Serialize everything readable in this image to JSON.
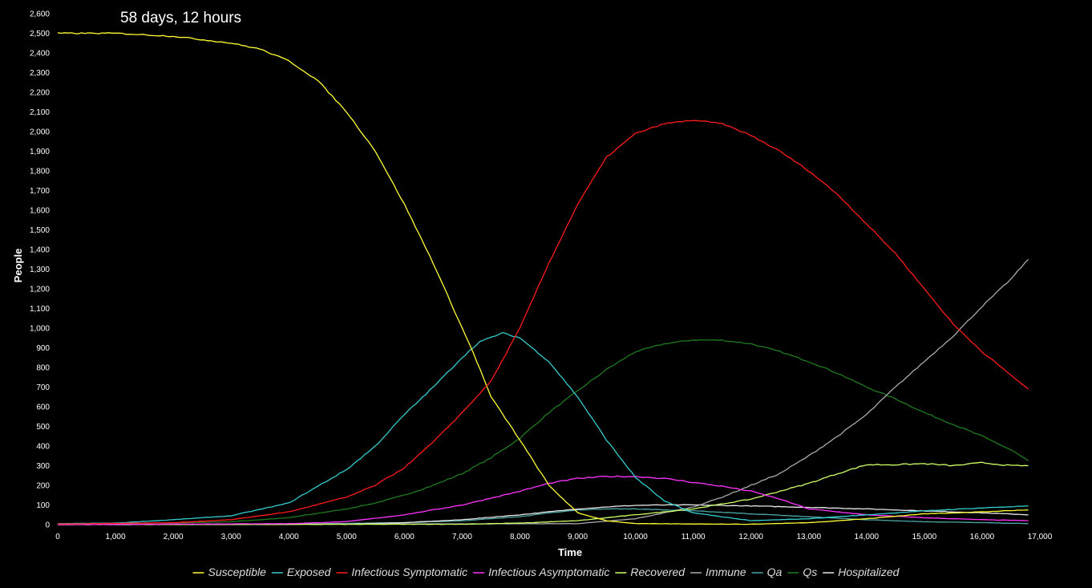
{
  "status": {
    "elapsed": "58 days, 12 hours"
  },
  "chart_data": {
    "type": "line",
    "xlabel": "Time",
    "ylabel": "People",
    "xlim": [
      0,
      17000
    ],
    "ylim": [
      0,
      2600
    ],
    "x_ticks": [
      0,
      1000,
      2000,
      3000,
      4000,
      5000,
      6000,
      7000,
      8000,
      9000,
      10000,
      11000,
      12000,
      13000,
      14000,
      15000,
      16000,
      17000
    ],
    "x_tick_labels": [
      "0",
      "1,000",
      "2,000",
      "3,000",
      "4,000",
      "5,000",
      "6,000",
      "7,000",
      "8,000",
      "9,000",
      "10,000",
      "11,000",
      "12,000",
      "13,000",
      "14,000",
      "15,000",
      "16,000",
      "17,000"
    ],
    "y_ticks": [
      0,
      100,
      200,
      300,
      400,
      500,
      600,
      700,
      800,
      900,
      1000,
      1100,
      1200,
      1300,
      1400,
      1500,
      1600,
      1700,
      1800,
      1900,
      2000,
      2100,
      2200,
      2300,
      2400,
      2500,
      2600
    ],
    "y_tick_labels": [
      "0",
      "100",
      "200",
      "300",
      "400",
      "500",
      "600",
      "700",
      "800",
      "900",
      "1,000",
      "1,100",
      "1,200",
      "1,300",
      "1,400",
      "1,500",
      "1,600",
      "1,700",
      "1,800",
      "1,900",
      "2,000",
      "2,100",
      "2,200",
      "2,300",
      "2,400",
      "2,500",
      "2,600"
    ],
    "grid": false,
    "legend_position": "bottom",
    "series": [
      {
        "name": "Susceptible",
        "color": "#ffff33",
        "points": [
          [
            0,
            2500
          ],
          [
            1000,
            2500
          ],
          [
            2000,
            2485
          ],
          [
            3000,
            2450
          ],
          [
            3500,
            2420
          ],
          [
            4000,
            2360
          ],
          [
            4500,
            2260
          ],
          [
            5000,
            2100
          ],
          [
            5500,
            1900
          ],
          [
            6000,
            1630
          ],
          [
            6500,
            1330
          ],
          [
            7000,
            1000
          ],
          [
            7200,
            870
          ],
          [
            7500,
            650
          ],
          [
            8000,
            430
          ],
          [
            8500,
            200
          ],
          [
            9000,
            60
          ],
          [
            9500,
            20
          ],
          [
            10000,
            5
          ],
          [
            12000,
            2
          ],
          [
            13000,
            10
          ],
          [
            14000,
            30
          ],
          [
            15000,
            55
          ],
          [
            16000,
            65
          ],
          [
            16800,
            75
          ]
        ]
      },
      {
        "name": "Exposed",
        "color": "#33cccc",
        "points": [
          [
            0,
            5
          ],
          [
            1000,
            8
          ],
          [
            2000,
            25
          ],
          [
            3000,
            45
          ],
          [
            4000,
            110
          ],
          [
            5000,
            280
          ],
          [
            5500,
            400
          ],
          [
            6000,
            560
          ],
          [
            6500,
            700
          ],
          [
            7000,
            850
          ],
          [
            7300,
            930
          ],
          [
            7700,
            975
          ],
          [
            8000,
            950
          ],
          [
            8500,
            830
          ],
          [
            9000,
            650
          ],
          [
            9500,
            430
          ],
          [
            10000,
            240
          ],
          [
            10500,
            120
          ],
          [
            11000,
            60
          ],
          [
            12000,
            20
          ],
          [
            13000,
            30
          ],
          [
            14000,
            50
          ],
          [
            15000,
            70
          ],
          [
            16000,
            85
          ],
          [
            16800,
            95
          ]
        ]
      },
      {
        "name": "Infectious Symptomatic",
        "color": "#ff1a1a",
        "points": [
          [
            0,
            3
          ],
          [
            2000,
            10
          ],
          [
            3000,
            25
          ],
          [
            4000,
            65
          ],
          [
            5000,
            140
          ],
          [
            5500,
            200
          ],
          [
            6000,
            290
          ],
          [
            6500,
            420
          ],
          [
            7000,
            570
          ],
          [
            7500,
            730
          ],
          [
            8000,
            1000
          ],
          [
            8500,
            1330
          ],
          [
            9000,
            1630
          ],
          [
            9500,
            1870
          ],
          [
            10000,
            1990
          ],
          [
            10500,
            2040
          ],
          [
            11000,
            2058
          ],
          [
            11500,
            2040
          ],
          [
            12000,
            1980
          ],
          [
            12500,
            1900
          ],
          [
            13000,
            1800
          ],
          [
            13500,
            1680
          ],
          [
            14000,
            1530
          ],
          [
            14500,
            1380
          ],
          [
            15000,
            1200
          ],
          [
            15500,
            1020
          ],
          [
            16000,
            880
          ],
          [
            16500,
            760
          ],
          [
            16800,
            690
          ]
        ]
      },
      {
        "name": "Infectious Asymptomatic",
        "color": "#ff33ff",
        "points": [
          [
            0,
            0
          ],
          [
            4000,
            5
          ],
          [
            5000,
            15
          ],
          [
            6000,
            50
          ],
          [
            7000,
            100
          ],
          [
            8000,
            170
          ],
          [
            8500,
            210
          ],
          [
            9000,
            235
          ],
          [
            9500,
            245
          ],
          [
            10000,
            245
          ],
          [
            10500,
            235
          ],
          [
            11000,
            215
          ],
          [
            11500,
            195
          ],
          [
            12000,
            170
          ],
          [
            12500,
            130
          ],
          [
            13000,
            80
          ],
          [
            14000,
            50
          ],
          [
            15000,
            35
          ],
          [
            16000,
            25
          ],
          [
            16800,
            20
          ]
        ]
      },
      {
        "name": "Recovered",
        "color": "#ccff66",
        "points": [
          [
            0,
            0
          ],
          [
            7000,
            2
          ],
          [
            8000,
            8
          ],
          [
            9000,
            20
          ],
          [
            10000,
            50
          ],
          [
            11000,
            80
          ],
          [
            12000,
            130
          ],
          [
            12500,
            170
          ],
          [
            13000,
            210
          ],
          [
            13500,
            260
          ],
          [
            14000,
            305
          ],
          [
            14500,
            305
          ],
          [
            15000,
            310
          ],
          [
            15500,
            300
          ],
          [
            16000,
            315
          ],
          [
            16500,
            300
          ],
          [
            16800,
            300
          ]
        ]
      },
      {
        "name": "Immune",
        "color": "#aaaaaa",
        "points": [
          [
            0,
            0
          ],
          [
            9000,
            5
          ],
          [
            10000,
            30
          ],
          [
            11000,
            90
          ],
          [
            11500,
            140
          ],
          [
            12000,
            200
          ],
          [
            12500,
            260
          ],
          [
            13000,
            350
          ],
          [
            13500,
            450
          ],
          [
            14000,
            560
          ],
          [
            14500,
            700
          ],
          [
            15000,
            830
          ],
          [
            15500,
            960
          ],
          [
            16000,
            1110
          ],
          [
            16500,
            1250
          ],
          [
            16800,
            1350
          ]
        ]
      },
      {
        "name": "Qa",
        "color": "#4da6a6",
        "points": [
          [
            0,
            0
          ],
          [
            4000,
            2
          ],
          [
            6000,
            10
          ],
          [
            7000,
            20
          ],
          [
            8000,
            40
          ],
          [
            8500,
            60
          ],
          [
            9000,
            75
          ],
          [
            9500,
            80
          ],
          [
            10000,
            80
          ],
          [
            11000,
            70
          ],
          [
            12000,
            55
          ],
          [
            13000,
            40
          ],
          [
            14000,
            25
          ],
          [
            15000,
            15
          ],
          [
            16000,
            10
          ],
          [
            16800,
            5
          ]
        ]
      },
      {
        "name": "Qs",
        "color": "#1f7a1f",
        "points": [
          [
            0,
            3
          ],
          [
            2000,
            8
          ],
          [
            3000,
            15
          ],
          [
            4000,
            35
          ],
          [
            5000,
            80
          ],
          [
            5500,
            110
          ],
          [
            6000,
            150
          ],
          [
            6500,
            200
          ],
          [
            7000,
            260
          ],
          [
            7500,
            340
          ],
          [
            8000,
            440
          ],
          [
            8500,
            570
          ],
          [
            9000,
            680
          ],
          [
            9500,
            790
          ],
          [
            10000,
            880
          ],
          [
            10500,
            920
          ],
          [
            11000,
            940
          ],
          [
            11500,
            938
          ],
          [
            12000,
            920
          ],
          [
            12500,
            880
          ],
          [
            13000,
            830
          ],
          [
            13500,
            770
          ],
          [
            14000,
            700
          ],
          [
            14500,
            640
          ],
          [
            15000,
            570
          ],
          [
            15500,
            510
          ],
          [
            16000,
            450
          ],
          [
            16500,
            380
          ],
          [
            16800,
            325
          ]
        ]
      },
      {
        "name": "Hospitalized",
        "color": "#e8e8e8",
        "points": [
          [
            0,
            0
          ],
          [
            5000,
            3
          ],
          [
            6000,
            10
          ],
          [
            7000,
            25
          ],
          [
            8000,
            50
          ],
          [
            8500,
            65
          ],
          [
            9000,
            80
          ],
          [
            9500,
            90
          ],
          [
            10000,
            98
          ],
          [
            10500,
            100
          ],
          [
            11000,
            100
          ],
          [
            12000,
            95
          ],
          [
            13000,
            88
          ],
          [
            14000,
            80
          ],
          [
            15000,
            70
          ],
          [
            16000,
            60
          ],
          [
            16800,
            50
          ]
        ]
      }
    ]
  }
}
